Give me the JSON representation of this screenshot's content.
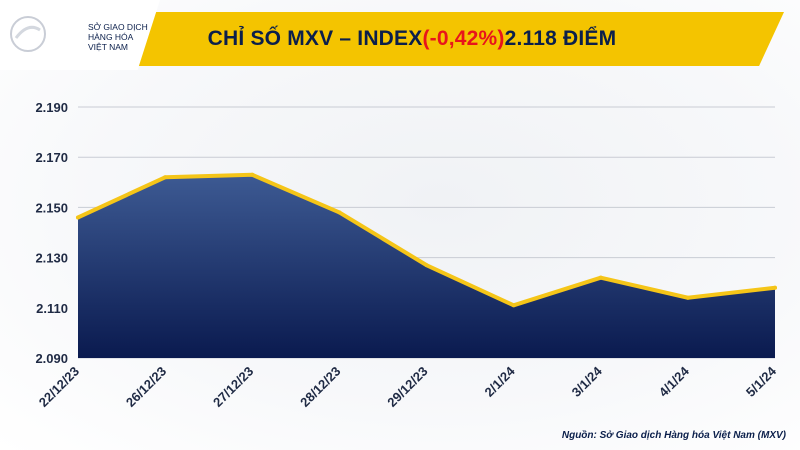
{
  "header": {
    "logo_lines": [
      "SỞ GIAO DỊCH",
      "HÀNG HÓA",
      "VIỆT NAM"
    ],
    "title_prefix": "CHỈ SỐ MXV – INDEX ",
    "title_change": "(-0,42%)",
    "title_suffix": " 2.118 ĐIỂM"
  },
  "source": "Nguồn: Sở Giao dịch Hàng hóa Việt Nam (MXV)",
  "colors": {
    "header_band": "#f4c400",
    "title_text": "#0b1f4b",
    "negative": "#e8141b",
    "area_top": "#3d5a93",
    "area_bottom": "#0a1a4f",
    "line": "#f5c518"
  },
  "chart_data": {
    "type": "area",
    "categories": [
      "22/12/23",
      "26/12/23",
      "27/12/23",
      "28/12/23",
      "29/12/23",
      "2/1/24",
      "3/1/24",
      "4/1/24",
      "5/1/24"
    ],
    "values": [
      2146,
      2162,
      2163,
      2148,
      2127,
      2111,
      2122,
      2114,
      2118
    ],
    "ylim": [
      2090,
      2190
    ],
    "yticks": [
      "2.190",
      "2.170",
      "2.150",
      "2.130",
      "2.110",
      "2.090"
    ],
    "ytick_values": [
      2190,
      2170,
      2150,
      2130,
      2110,
      2090
    ],
    "grid": true,
    "legend": "none"
  }
}
